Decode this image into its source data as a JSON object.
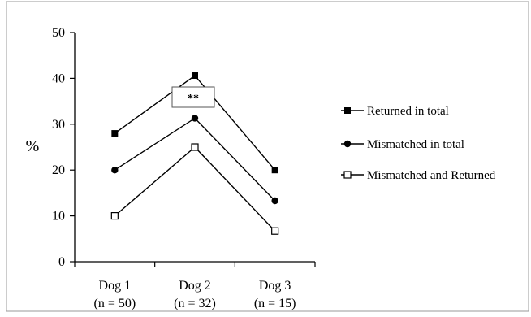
{
  "chart_data": {
    "type": "line",
    "categories": [
      "Dog 1",
      "Dog 2",
      "Dog 3"
    ],
    "category_sublabels": [
      "(n = 50)",
      "(n = 32)",
      "(n = 15)"
    ],
    "ylabel": "%",
    "ylim": [
      0,
      50
    ],
    "yticks": [
      0,
      10,
      20,
      30,
      40,
      50
    ],
    "grid": false,
    "legend_position": "right",
    "series": [
      {
        "name": "Returned in total",
        "values": [
          28,
          40.6,
          20
        ],
        "marker": "filled-square"
      },
      {
        "name": "Mismatched in total",
        "values": [
          20,
          31.3,
          13.3
        ],
        "marker": "filled-circle"
      },
      {
        "name": "Mismatched and Returned",
        "values": [
          10,
          25,
          6.7
        ],
        "marker": "open-square"
      }
    ],
    "annotation": {
      "text": "**",
      "category": "Dog 2"
    }
  }
}
